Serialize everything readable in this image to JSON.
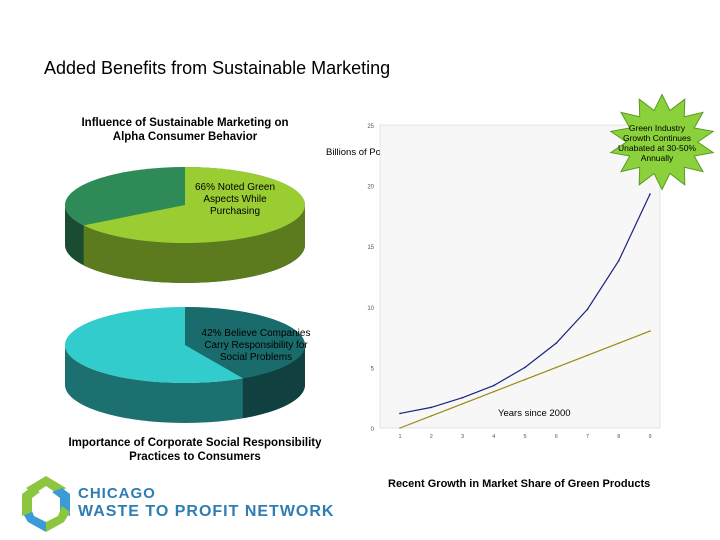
{
  "slide": {
    "title": "Added Benefits from Sustainable Marketing"
  },
  "logo": {
    "line1": "CHICAGO",
    "line2": "WASTE TO PROFIT NETWORK"
  },
  "chart_data": [
    {
      "type": "pie",
      "title": "Influence of Sustainable Marketing on Alpha Consumer Behavior",
      "label": "66% Noted Green Aspects While Purchasing",
      "value": 66,
      "colors": {
        "highlight": "#9acd32",
        "rest": "#2e8b57"
      }
    },
    {
      "type": "pie",
      "caption": "Importance of Corporate Social Responsibility Practices to Consumers",
      "label": "42% Believe Companies Carry Responsibility for Social Problems",
      "value": 42,
      "colors": {
        "highlight": "#1a6b6b",
        "rest": "#33cccc"
      }
    },
    {
      "type": "line",
      "ylabel": "Billions of Pounds Sterling",
      "xlabel": "Years since 2000",
      "caption": "Recent Growth in Market Share of Green Products",
      "annotation": "Green Industry Growth Continues Unabated at 30-50% Annually",
      "ylim": [
        0,
        25
      ],
      "yticks": [
        "0",
        "5",
        "10",
        "15",
        "20",
        "25"
      ],
      "x": [
        1,
        2,
        3,
        4,
        5,
        6,
        7,
        8,
        9
      ],
      "xticks": [
        "1",
        "2",
        "3",
        "4",
        "5",
        "6",
        "7",
        "8",
        "9"
      ],
      "series": [
        {
          "values": [
            1.2,
            1.7,
            2.5,
            3.5,
            5.0,
            7.0,
            9.8,
            13.8,
            19.3
          ],
          "color": "#1a237e"
        },
        {
          "values": [
            0.0,
            1.0,
            2.0,
            3.0,
            4.0,
            5.0,
            6.0,
            7.0,
            8.0
          ],
          "color": "#9a8a10"
        }
      ]
    }
  ]
}
